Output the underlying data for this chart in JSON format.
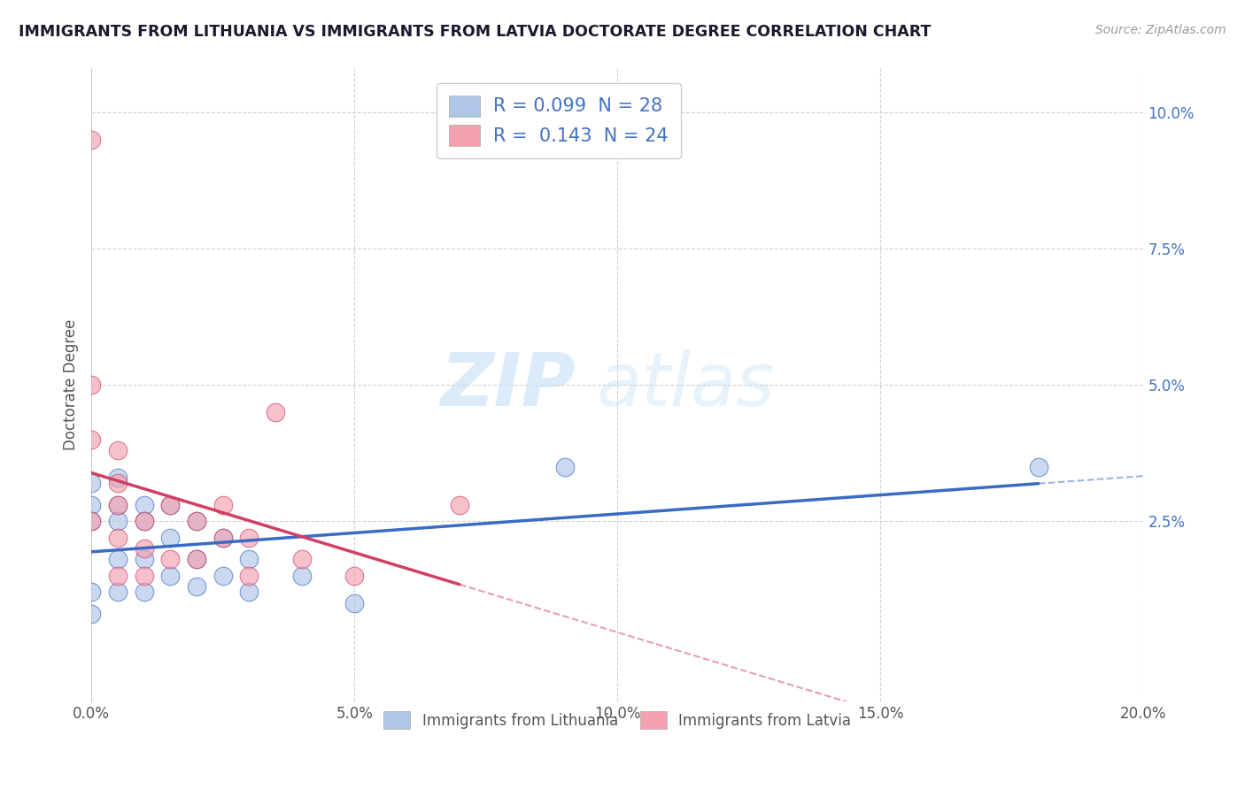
{
  "title": "IMMIGRANTS FROM LITHUANIA VS IMMIGRANTS FROM LATVIA DOCTORATE DEGREE CORRELATION CHART",
  "source_text": "Source: ZipAtlas.com",
  "ylabel_text": "Doctorate Degree",
  "xlim": [
    0.0,
    0.2
  ],
  "ylim": [
    -0.008,
    0.108
  ],
  "xtick_labels": [
    "0.0%",
    "5.0%",
    "10.0%",
    "15.0%",
    "20.0%"
  ],
  "xtick_vals": [
    0.0,
    0.05,
    0.1,
    0.15,
    0.2
  ],
  "ytick_labels": [
    "2.5%",
    "5.0%",
    "7.5%",
    "10.0%"
  ],
  "ytick_vals": [
    0.025,
    0.05,
    0.075,
    0.1
  ],
  "series1_label": "Immigrants from Lithuania",
  "series2_label": "Immigrants from Latvia",
  "series1_color": "#aec6e8",
  "series2_color": "#f4a0b0",
  "series1_R": "0.099",
  "series1_N": "28",
  "series2_R": "0.143",
  "series2_N": "24",
  "watermark_zip": "ZIP",
  "watermark_atlas": "atlas",
  "series1_x": [
    0.0,
    0.0,
    0.0,
    0.0,
    0.0,
    0.005,
    0.005,
    0.005,
    0.005,
    0.005,
    0.01,
    0.01,
    0.01,
    0.01,
    0.015,
    0.015,
    0.015,
    0.02,
    0.02,
    0.02,
    0.025,
    0.025,
    0.03,
    0.03,
    0.04,
    0.05,
    0.09,
    0.18
  ],
  "series1_y": [
    0.032,
    0.028,
    0.025,
    0.012,
    0.008,
    0.033,
    0.028,
    0.025,
    0.018,
    0.012,
    0.028,
    0.025,
    0.018,
    0.012,
    0.028,
    0.022,
    0.015,
    0.025,
    0.018,
    0.013,
    0.022,
    0.015,
    0.018,
    0.012,
    0.015,
    0.01,
    0.035,
    0.035
  ],
  "series2_x": [
    0.0,
    0.0,
    0.0,
    0.0,
    0.005,
    0.005,
    0.005,
    0.005,
    0.005,
    0.01,
    0.01,
    0.01,
    0.015,
    0.015,
    0.02,
    0.02,
    0.025,
    0.025,
    0.03,
    0.03,
    0.035,
    0.04,
    0.05,
    0.07
  ],
  "series2_y": [
    0.095,
    0.05,
    0.04,
    0.025,
    0.038,
    0.032,
    0.028,
    0.022,
    0.015,
    0.025,
    0.02,
    0.015,
    0.028,
    0.018,
    0.025,
    0.018,
    0.028,
    0.022,
    0.022,
    0.015,
    0.045,
    0.018,
    0.015,
    0.028
  ],
  "title_color": "#1a1a2e",
  "axis_color": "#555555",
  "grid_color": "#cccccc",
  "trend1_color": "#3a6bc4",
  "trend2_color": "#d04060",
  "background_color": "#ffffff",
  "legend_text_color": "#4472c4"
}
